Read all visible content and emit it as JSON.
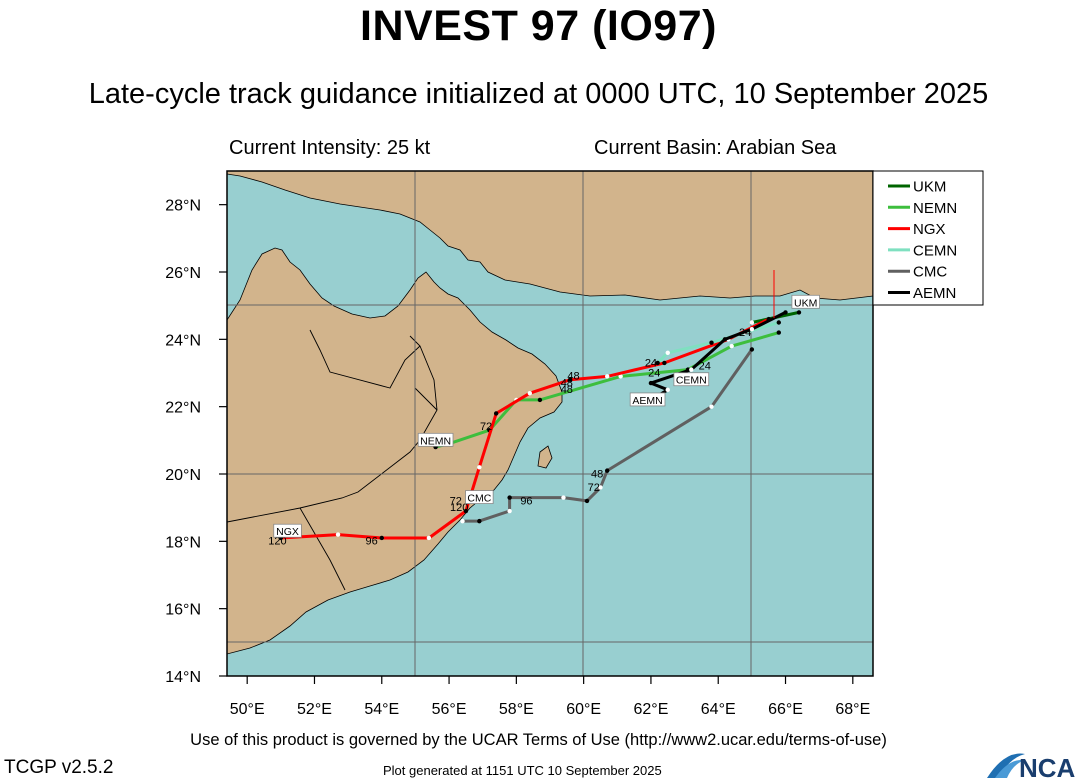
{
  "header": {
    "title": "INVEST 97 (IO97)",
    "subtitle": "Late-cycle track guidance initialized at 0000 UTC, 10 September 2025",
    "intensity_text": "Current Intensity: 25 kt",
    "basin_text": "Current Basin: Arabian Sea"
  },
  "footer": {
    "terms": "Use of this product is governed by the UCAR Terms of Use (http://www2.ucar.edu/terms-of-use)",
    "version": "TCGP v2.5.2",
    "generated": "Plot generated at 1151 UTC   10 September 2025",
    "logo_text": "NCAR"
  },
  "colors": {
    "ocean": "#98cfd0",
    "land": "#d2b48c",
    "UKM": "#006400",
    "NEMN": "#3dbe3d",
    "NGX": "#ff0000",
    "CEMN": "#7fe0c0",
    "CMC": "#606060",
    "AEMN": "#000000"
  },
  "map": {
    "lon_range": [
      49.4,
      68.6
    ],
    "lat_range": [
      14.0,
      29.0
    ],
    "lon_ticks": [
      "50°E",
      "52°E",
      "54°E",
      "56°E",
      "58°E",
      "60°E",
      "62°E",
      "64°E",
      "66°E",
      "68°E"
    ],
    "lat_ticks": [
      "14°N",
      "16°N",
      "18°N",
      "20°N",
      "22°N",
      "24°N",
      "26°N",
      "28°N"
    ]
  },
  "tracks": [
    {
      "name": "UKM",
      "lon": [
        66.4,
        65.0
      ],
      "lat": [
        24.8,
        24.5
      ]
    },
    {
      "name": "NEMN",
      "lon": [
        65.8,
        64.4,
        63.1,
        61.1,
        58.7,
        58.0,
        57.2,
        56.0,
        55.6
      ],
      "lat": [
        24.2,
        23.8,
        23.1,
        22.9,
        22.2,
        22.2,
        21.3,
        20.9,
        20.8
      ]
    },
    {
      "name": "NGX",
      "lon": [
        65.5,
        64.3,
        62.4,
        60.7,
        59.6,
        58.4,
        57.4,
        56.9,
        56.5,
        55.4,
        54.0,
        52.7,
        51.0
      ],
      "lat": [
        24.6,
        24.0,
        23.3,
        22.9,
        22.8,
        22.4,
        21.8,
        20.2,
        18.9,
        18.1,
        18.1,
        18.2,
        18.1
      ]
    },
    {
      "name": "CEMN",
      "lon": [
        65.8,
        64.8,
        63.8,
        62.5,
        62.2
      ],
      "lat": [
        24.5,
        24.2,
        23.9,
        23.6,
        23.3
      ]
    },
    {
      "name": "CMC",
      "lon": [
        65.0,
        63.8,
        60.7,
        60.5,
        60.1,
        59.4,
        57.8,
        57.8,
        56.9,
        56.4
      ],
      "lat": [
        23.7,
        22.0,
        20.1,
        19.6,
        19.2,
        19.3,
        19.3,
        18.9,
        18.6,
        18.6
      ]
    },
    {
      "name": "AEMN",
      "lon": [
        66.0,
        65.0,
        64.2,
        63.2,
        62.0,
        62.5,
        62.0
      ],
      "lat": [
        24.8,
        24.3,
        24.0,
        23.1,
        22.7,
        22.5,
        22.2
      ]
    }
  ],
  "hour_labels": [
    {
      "text": "24",
      "lon": 64.8,
      "lat": 24.1
    },
    {
      "text": "24",
      "lon": 62.0,
      "lat": 23.2
    },
    {
      "text": "24",
      "lon": 62.1,
      "lat": 22.9
    },
    {
      "text": "24",
      "lon": 63.6,
      "lat": 23.1
    },
    {
      "text": "24",
      "lon": 62.1,
      "lat": 22.1
    },
    {
      "text": "48",
      "lon": 59.7,
      "lat": 22.8
    },
    {
      "text": "48",
      "lon": 59.5,
      "lat": 22.6
    },
    {
      "text": "48",
      "lon": 59.5,
      "lat": 22.4
    },
    {
      "text": "72",
      "lon": 57.1,
      "lat": 21.3
    },
    {
      "text": "48",
      "lon": 60.4,
      "lat": 19.9
    },
    {
      "text": "72",
      "lon": 60.3,
      "lat": 19.5
    },
    {
      "text": "96",
      "lon": 58.3,
      "lat": 19.1
    },
    {
      "text": "72",
      "lon": 56.2,
      "lat": 19.1
    },
    {
      "text": "120",
      "lon": 56.3,
      "lat": 18.9
    },
    {
      "text": "96",
      "lon": 53.7,
      "lat": 17.9
    },
    {
      "text": "120",
      "lon": 50.9,
      "lat": 17.9
    }
  ],
  "box_labels": [
    {
      "text": "UKM",
      "lon": 66.6,
      "lat": 25.1
    },
    {
      "text": "CEMN",
      "lon": 63.2,
      "lat": 22.8
    },
    {
      "text": "AEMN",
      "lon": 61.9,
      "lat": 22.2
    },
    {
      "text": "NEMN",
      "lon": 55.6,
      "lat": 21.0
    },
    {
      "text": "CMC",
      "lon": 56.9,
      "lat": 19.3
    },
    {
      "text": "NGX",
      "lon": 51.2,
      "lat": 18.3
    }
  ],
  "legend": [
    {
      "name": "UKM",
      "color": "#006400"
    },
    {
      "name": "NEMN",
      "color": "#3dbe3d"
    },
    {
      "name": "NGX",
      "color": "#ff0000"
    },
    {
      "name": "CEMN",
      "color": "#7fe0c0"
    },
    {
      "name": "CMC",
      "color": "#606060"
    },
    {
      "name": "AEMN",
      "color": "#000000"
    }
  ]
}
